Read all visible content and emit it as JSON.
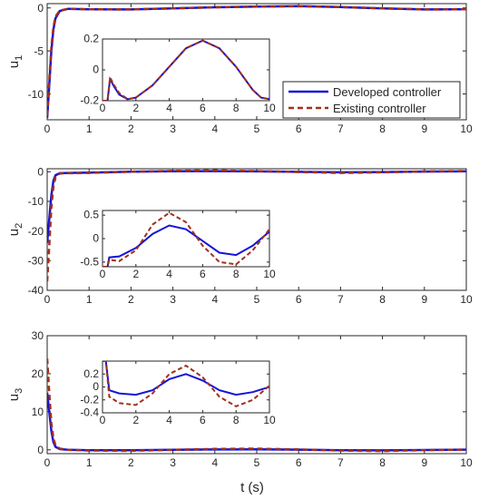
{
  "figure": {
    "x_axis_label": "t (s)"
  },
  "colors": {
    "developed": "#1414d8",
    "existing": "#a0301c",
    "axis": "#262626"
  },
  "legend": {
    "placement": "top-right of first panel",
    "entries": [
      {
        "label": "Developed controller",
        "style": "solid",
        "color_key": "developed"
      },
      {
        "label": "Existing controller",
        "style": "dashed",
        "color_key": "existing"
      }
    ]
  },
  "chart_data": [
    {
      "type": "line",
      "panel": "u1",
      "ylabel": "u_1",
      "xlim": [
        0,
        10
      ],
      "ylim": [
        -13,
        0.5
      ],
      "xticks": [
        0,
        1,
        2,
        3,
        4,
        5,
        6,
        7,
        8,
        9,
        10
      ],
      "yticks": [
        0,
        -5,
        -10
      ],
      "series": [
        {
          "name": "Developed controller",
          "x": [
            0,
            0.05,
            0.1,
            0.15,
            0.2,
            0.3,
            0.5,
            1,
            2,
            3,
            4,
            5,
            6,
            7,
            8,
            9,
            10
          ],
          "y": [
            -12.8,
            -9,
            -5,
            -2.5,
            -1.2,
            -0.35,
            -0.1,
            -0.15,
            -0.18,
            -0.05,
            0.08,
            0.15,
            0.2,
            0.1,
            -0.05,
            -0.18,
            -0.15
          ]
        },
        {
          "name": "Existing controller",
          "x": [
            0,
            0.05,
            0.1,
            0.15,
            0.2,
            0.3,
            0.5,
            1,
            2,
            3,
            4,
            5,
            6,
            7,
            8,
            9,
            10
          ],
          "y": [
            -12.5,
            -8.5,
            -4.5,
            -2.2,
            -1.0,
            -0.3,
            -0.1,
            -0.15,
            -0.18,
            -0.05,
            0.08,
            0.15,
            0.2,
            0.1,
            -0.05,
            -0.18,
            -0.15
          ]
        }
      ],
      "inset": {
        "xlim": [
          0,
          10
        ],
        "ylim": [
          -0.2,
          0.2
        ],
        "xticks": [
          0,
          2,
          4,
          6,
          8,
          10
        ],
        "yticks": [
          0.2,
          0,
          -0.2
        ],
        "series": [
          {
            "name": "Developed controller",
            "x": [
              0,
              0.3,
              0.45,
              0.7,
              1,
              1.5,
              2,
              3,
              4,
              5,
              6,
              7,
              8,
              9,
              9.5,
              10
            ],
            "y": [
              -0.2,
              -0.2,
              -0.06,
              -0.11,
              -0.16,
              -0.19,
              -0.18,
              -0.1,
              0.02,
              0.14,
              0.19,
              0.14,
              0.02,
              -0.13,
              -0.18,
              -0.19
            ]
          },
          {
            "name": "Existing controller",
            "x": [
              0,
              0.3,
              0.45,
              0.7,
              1,
              1.5,
              2,
              3,
              4,
              5,
              6,
              7,
              8,
              9,
              9.5,
              10
            ],
            "y": [
              -0.2,
              -0.2,
              -0.05,
              -0.1,
              -0.15,
              -0.19,
              -0.18,
              -0.1,
              0.02,
              0.14,
              0.19,
              0.14,
              0.02,
              -0.13,
              -0.18,
              -0.19
            ]
          }
        ]
      }
    },
    {
      "type": "line",
      "panel": "u2",
      "ylabel": "u_2",
      "xlim": [
        0,
        10
      ],
      "ylim": [
        -40,
        1
      ],
      "xticks": [
        0,
        1,
        2,
        3,
        4,
        5,
        6,
        7,
        8,
        9,
        10
      ],
      "yticks": [
        0,
        -10,
        -20,
        -30,
        -40
      ],
      "series": [
        {
          "name": "Developed controller",
          "x": [
            0,
            0.05,
            0.1,
            0.15,
            0.2,
            0.3,
            0.5,
            1,
            2,
            3,
            4,
            5,
            6,
            7,
            8,
            9,
            10
          ],
          "y": [
            -24,
            -16,
            -8,
            -3,
            -1.2,
            -0.5,
            -0.4,
            -0.3,
            0,
            0.15,
            0.2,
            0.1,
            -0.05,
            -0.2,
            -0.1,
            0.05,
            0.15
          ]
        },
        {
          "name": "Existing controller",
          "x": [
            0,
            0.05,
            0.1,
            0.15,
            0.2,
            0.3,
            0.5,
            1,
            2,
            3,
            4,
            5,
            6,
            7,
            8,
            9,
            10
          ],
          "y": [
            -37,
            -25,
            -12,
            -5,
            -1.8,
            -0.6,
            -0.5,
            -0.4,
            0,
            0.3,
            0.45,
            0.2,
            -0.1,
            -0.4,
            -0.2,
            0.1,
            0.25
          ]
        }
      ],
      "inset": {
        "xlim": [
          0,
          10
        ],
        "ylim": [
          -0.6,
          0.6
        ],
        "xticks": [
          0,
          2,
          4,
          6,
          8,
          10
        ],
        "yticks": [
          0.5,
          0,
          -0.5
        ],
        "series": [
          {
            "name": "Developed controller",
            "x": [
              0,
              0.3,
              0.4,
              1,
              2,
              3,
              4,
              5,
              6,
              7,
              8,
              9,
              10
            ],
            "y": [
              -0.6,
              -0.6,
              -0.4,
              -0.38,
              -0.2,
              0.1,
              0.28,
              0.2,
              -0.05,
              -0.3,
              -0.35,
              -0.15,
              0.15
            ]
          },
          {
            "name": "Existing controller",
            "x": [
              0,
              0.3,
              0.4,
              1,
              2,
              3,
              4,
              5,
              6,
              7,
              8,
              9,
              10
            ],
            "y": [
              -0.6,
              -0.6,
              -0.45,
              -0.48,
              -0.25,
              0.3,
              0.55,
              0.35,
              -0.15,
              -0.5,
              -0.55,
              -0.25,
              0.2
            ]
          }
        ]
      }
    },
    {
      "type": "line",
      "panel": "u3",
      "ylabel": "u_3",
      "xlim": [
        0,
        10
      ],
      "ylim": [
        -1,
        30
      ],
      "xticks": [
        0,
        1,
        2,
        3,
        4,
        5,
        6,
        7,
        8,
        9,
        10
      ],
      "yticks": [
        30,
        20,
        10,
        0
      ],
      "series": [
        {
          "name": "Developed controller",
          "x": [
            0,
            0.05,
            0.1,
            0.15,
            0.2,
            0.3,
            0.5,
            1,
            2,
            3,
            4,
            5,
            6,
            7,
            8,
            9,
            10
          ],
          "y": [
            15,
            10,
            5,
            2,
            0.8,
            0.2,
            0,
            -0.1,
            -0.1,
            0,
            0.1,
            0.15,
            0.05,
            -0.1,
            -0.15,
            -0.05,
            0.05
          ]
        },
        {
          "name": "Existing controller",
          "x": [
            0,
            0.05,
            0.1,
            0.15,
            0.2,
            0.3,
            0.5,
            1,
            2,
            3,
            4,
            5,
            6,
            7,
            8,
            9,
            10
          ],
          "y": [
            24,
            15,
            7,
            3,
            1.2,
            0.3,
            0,
            -0.2,
            -0.25,
            0,
            0.25,
            0.3,
            0.1,
            -0.2,
            -0.3,
            -0.1,
            0.05
          ]
        }
      ],
      "inset": {
        "xlim": [
          0,
          10
        ],
        "ylim": [
          -0.4,
          0.4
        ],
        "xticks": [
          0,
          2,
          4,
          6,
          8,
          10
        ],
        "yticks": [
          0.2,
          0,
          -0.2,
          -0.4
        ],
        "series": [
          {
            "name": "Developed controller",
            "x": [
              0,
              0.2,
              0.4,
              1,
              2,
              3,
              4,
              5,
              6,
              7,
              8,
              9,
              10
            ],
            "y": [
              0.4,
              0.4,
              -0.05,
              -0.1,
              -0.12,
              -0.05,
              0.12,
              0.2,
              0.1,
              -0.05,
              -0.12,
              -0.08,
              0.0
            ]
          },
          {
            "name": "Existing controller",
            "x": [
              0,
              0.2,
              0.4,
              1,
              2,
              3,
              4,
              5,
              6,
              7,
              8,
              9,
              10
            ],
            "y": [
              0.4,
              0.4,
              -0.15,
              -0.25,
              -0.28,
              -0.1,
              0.2,
              0.33,
              0.15,
              -0.15,
              -0.3,
              -0.2,
              0.02
            ]
          }
        ]
      }
    }
  ]
}
